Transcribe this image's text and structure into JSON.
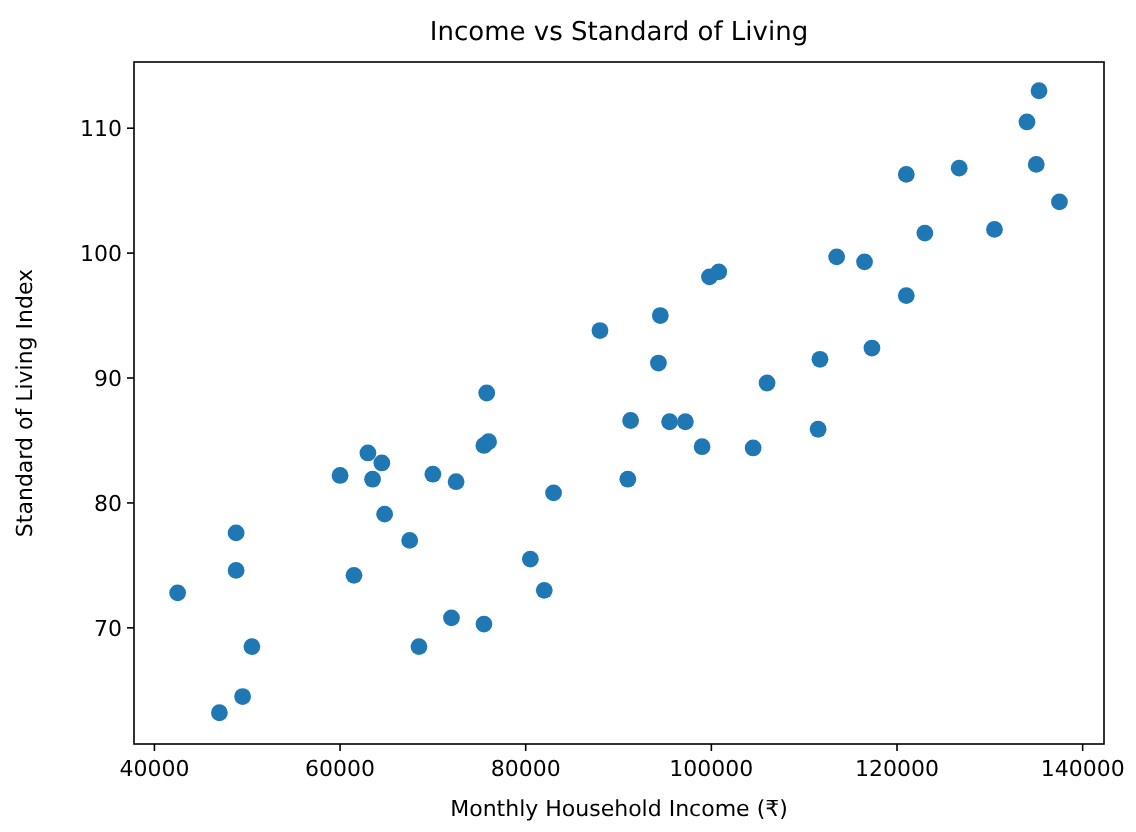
{
  "chart_data": {
    "type": "scatter",
    "title": "Income vs Standard of Living",
    "xlabel": "Monthly Household Income (₹)",
    "ylabel": "Standard of Living Index",
    "x": [
      42500,
      47000,
      48800,
      48800,
      49500,
      50500,
      60000,
      61500,
      63000,
      63500,
      64500,
      64800,
      67500,
      68500,
      70000,
      72000,
      72500,
      75500,
      75500,
      76000,
      75800,
      80500,
      82000,
      83000,
      88000,
      91000,
      91300,
      94300,
      94500,
      95500,
      97200,
      99000,
      99800,
      100800,
      104500,
      106000,
      111500,
      111700,
      113500,
      116500,
      117300,
      121000,
      121000,
      123000,
      126700,
      130500,
      134000,
      135000,
      135300,
      137500
    ],
    "series": [
      {
        "color": "#1f77b4",
        "values": [
          72.8,
          63.2,
          77.6,
          74.6,
          64.5,
          68.5,
          82.2,
          74.2,
          84,
          81.9,
          83.2,
          79.1,
          77,
          68.5,
          82.3,
          70.8,
          81.7,
          70.3,
          84.6,
          84.9,
          88.8,
          75.5,
          73,
          80.8,
          93.8,
          81.9,
          86.6,
          91.2,
          95,
          86.5,
          86.5,
          84.5,
          98.1,
          98.5,
          84.4,
          89.6,
          85.9,
          91.5,
          99.7,
          99.3,
          92.4,
          96.6,
          106.3,
          101.6,
          106.8,
          101.9,
          110.5,
          107.1,
          113,
          104.1
        ]
      }
    ],
    "xlim": [
      37800,
      142300
    ],
    "ylim": [
      60.7,
      115.3
    ],
    "xticks": [
      40000,
      60000,
      80000,
      100000,
      120000,
      140000
    ],
    "yticks": [
      70,
      80,
      90,
      100,
      110
    ],
    "marker": "circle",
    "grid": false
  }
}
